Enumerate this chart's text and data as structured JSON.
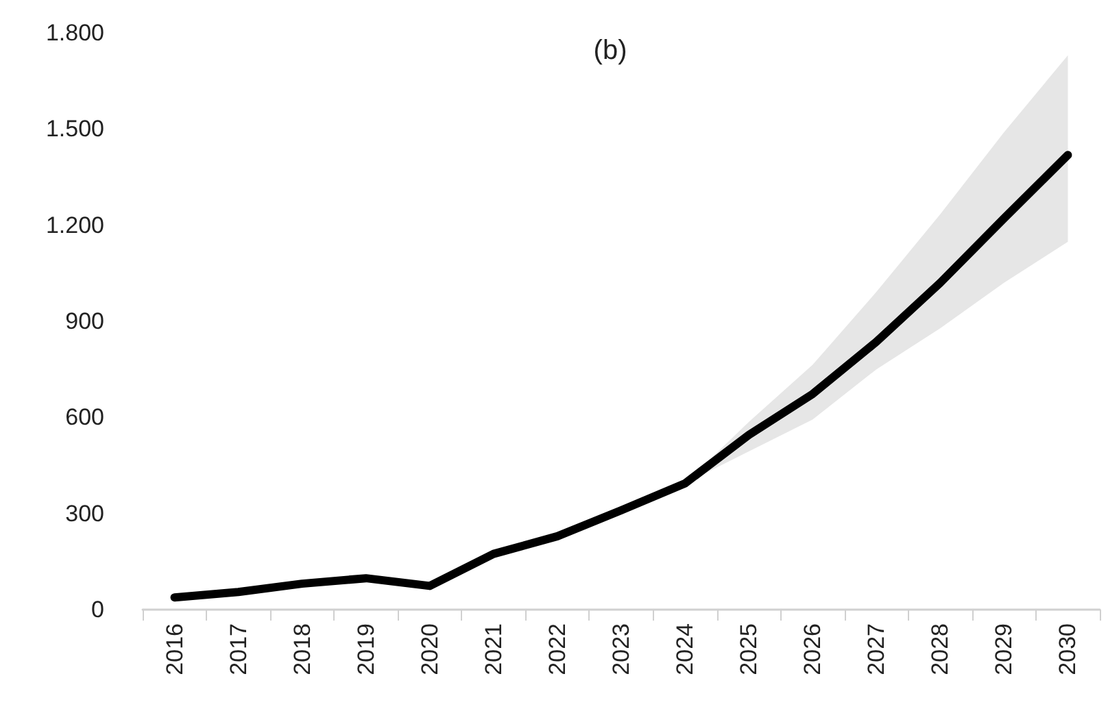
{
  "chart_data": {
    "type": "line",
    "title": "(b)",
    "categories": [
      "2016",
      "2017",
      "2018",
      "2019",
      "2020",
      "2021",
      "2022",
      "2023",
      "2024",
      "2025",
      "2026",
      "2027",
      "2028",
      "2029",
      "2030"
    ],
    "series": [
      {
        "color": "#000000",
        "values": [
          38,
          55,
          81,
          98,
          74,
          174,
          229,
          310,
          394,
          545,
          673,
          836,
          1020,
          1221,
          1419
        ],
        "lower": [
          null,
          null,
          null,
          null,
          null,
          null,
          null,
          null,
          394,
          494,
          593,
          750,
          878,
          1020,
          1148
        ],
        "upper": [
          null,
          null,
          null,
          null,
          null,
          null,
          null,
          null,
          394,
          586,
          764,
          992,
          1234,
          1490,
          1730
        ]
      }
    ],
    "ylim": [
      0,
      1800
    ],
    "yticks": [
      {
        "value": 0,
        "label": "0"
      },
      {
        "value": 300,
        "label": "300"
      },
      {
        "value": 600,
        "label": "600"
      },
      {
        "value": 900,
        "label": "900"
      },
      {
        "value": 1200,
        "label": "1.200"
      },
      {
        "value": 1500,
        "label": "1.500"
      },
      {
        "value": 1800,
        "label": "1.800"
      }
    ],
    "grid": false,
    "marker": "none",
    "line_style": "solid"
  }
}
